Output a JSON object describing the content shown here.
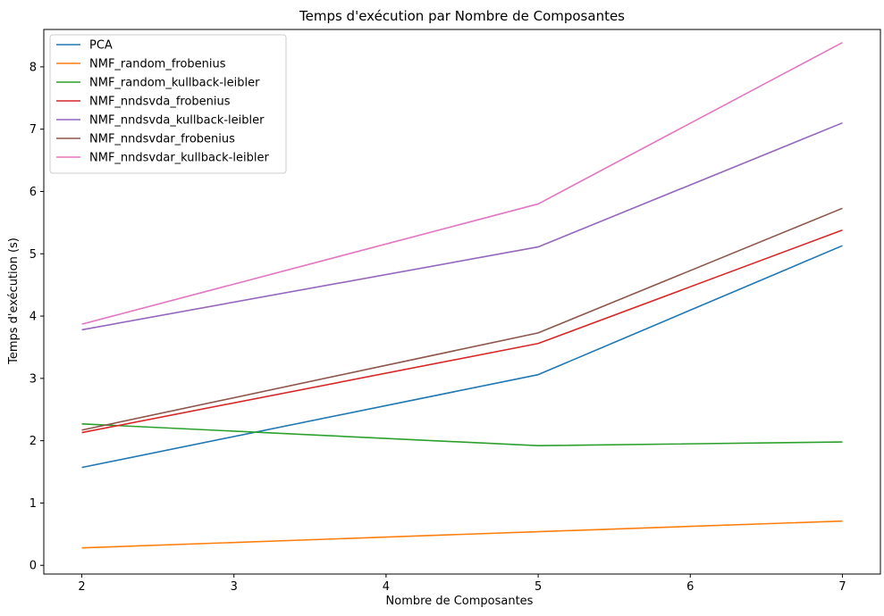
{
  "chart_data": {
    "type": "line",
    "title": "Temps d'exécution par Nombre de Composantes",
    "xlabel": "Nombre de Composantes",
    "ylabel": "Temps d'exécution (s)",
    "x": [
      2,
      5,
      7
    ],
    "xticks": [
      "2",
      "3",
      "4",
      "5",
      "6",
      "7"
    ],
    "yticks": [
      "0",
      "1",
      "2",
      "3",
      "4",
      "5",
      "6",
      "7",
      "8"
    ],
    "xlim": [
      1.75,
      7.25
    ],
    "ylim": [
      -0.14,
      8.6
    ],
    "grid": false,
    "legend_position": "top-left",
    "series": [
      {
        "name": "PCA",
        "color": "#1f77b4",
        "values": [
          1.57,
          3.06,
          5.13
        ]
      },
      {
        "name": "NMF_random_frobenius",
        "color": "#ff7f0e",
        "values": [
          0.28,
          0.54,
          0.71
        ]
      },
      {
        "name": "NMF_random_kullback-leibler",
        "color": "#2ca02c",
        "values": [
          2.27,
          1.92,
          1.98
        ]
      },
      {
        "name": "NMF_nndsvda_frobenius",
        "color": "#d62728",
        "values": [
          2.13,
          3.56,
          5.38
        ]
      },
      {
        "name": "NMF_nndsvda_kullback-leibler",
        "color": "#9467bd",
        "values": [
          3.78,
          5.11,
          7.1
        ]
      },
      {
        "name": "NMF_nndsvdar_frobenius",
        "color": "#8c564b",
        "values": [
          2.17,
          3.73,
          5.73
        ]
      },
      {
        "name": "NMF_nndsvdar_kullback-leibler",
        "color": "#e377c2",
        "values": [
          3.87,
          5.8,
          8.39
        ]
      }
    ]
  }
}
